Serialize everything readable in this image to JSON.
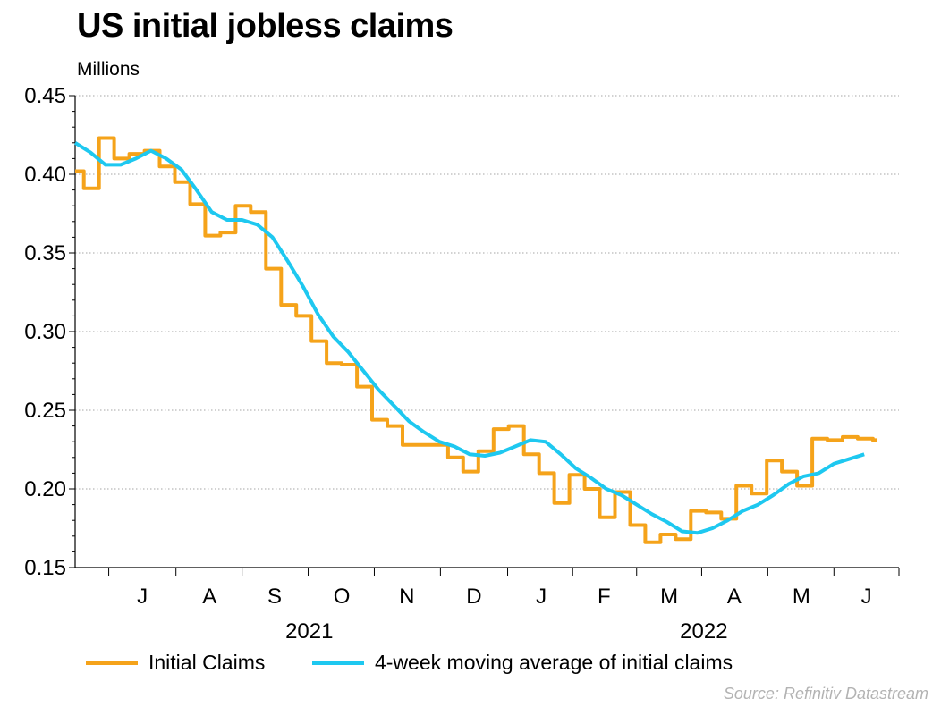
{
  "chart_data": {
    "type": "line",
    "title": "US initial jobless claims",
    "ylabel": "Millions",
    "ylim": [
      0.15,
      0.45
    ],
    "yticks": [
      "0.45",
      "0.40",
      "0.35",
      "0.30",
      "0.25",
      "0.20",
      "0.15"
    ],
    "xlim": [
      "2021-06-15",
      "2022-06-30"
    ],
    "x_month_labels": [
      {
        "label": "J",
        "date": "2021-07-16"
      },
      {
        "label": "A",
        "date": "2021-08-16"
      },
      {
        "label": "S",
        "date": "2021-09-15"
      },
      {
        "label": "O",
        "date": "2021-10-16"
      },
      {
        "label": "N",
        "date": "2021-11-15"
      },
      {
        "label": "D",
        "date": "2021-12-16"
      },
      {
        "label": "J",
        "date": "2022-01-16"
      },
      {
        "label": "F",
        "date": "2022-02-14"
      },
      {
        "label": "M",
        "date": "2022-03-16"
      },
      {
        "label": "A",
        "date": "2022-04-15"
      },
      {
        "label": "M",
        "date": "2022-05-16"
      },
      {
        "label": "J",
        "date": "2022-06-15"
      }
    ],
    "x_year_labels": [
      {
        "label": "2021",
        "date": "2021-10-01"
      },
      {
        "label": "2022",
        "date": "2022-04-01"
      }
    ],
    "grid": "horizontal-dotted",
    "legend_position": "bottom",
    "series": [
      {
        "name": "Initial Claims",
        "color": "#f5a31a",
        "step": true,
        "points": [
          [
            "2021-06-15",
            0.402
          ],
          [
            "2021-06-19",
            0.391
          ],
          [
            "2021-06-26",
            0.423
          ],
          [
            "2021-07-03",
            0.41
          ],
          [
            "2021-07-10",
            0.413
          ],
          [
            "2021-07-17",
            0.415
          ],
          [
            "2021-07-24",
            0.405
          ],
          [
            "2021-07-31",
            0.395
          ],
          [
            "2021-08-07",
            0.381
          ],
          [
            "2021-08-14",
            0.361
          ],
          [
            "2021-08-21",
            0.363
          ],
          [
            "2021-08-28",
            0.38
          ],
          [
            "2021-09-04",
            0.376
          ],
          [
            "2021-09-11",
            0.34
          ],
          [
            "2021-09-18",
            0.317
          ],
          [
            "2021-09-25",
            0.31
          ],
          [
            "2021-10-02",
            0.294
          ],
          [
            "2021-10-09",
            0.28
          ],
          [
            "2021-10-16",
            0.279
          ],
          [
            "2021-10-23",
            0.265
          ],
          [
            "2021-10-30",
            0.244
          ],
          [
            "2021-11-06",
            0.24
          ],
          [
            "2021-11-13",
            0.228
          ],
          [
            "2021-11-20",
            0.228
          ],
          [
            "2021-11-27",
            0.228
          ],
          [
            "2021-12-04",
            0.22
          ],
          [
            "2021-12-11",
            0.211
          ],
          [
            "2021-12-18",
            0.224
          ],
          [
            "2021-12-25",
            0.238
          ],
          [
            "2022-01-01",
            0.24
          ],
          [
            "2022-01-08",
            0.222
          ],
          [
            "2022-01-15",
            0.21
          ],
          [
            "2022-01-22",
            0.191
          ],
          [
            "2022-01-29",
            0.209
          ],
          [
            "2022-02-05",
            0.2
          ],
          [
            "2022-02-12",
            0.182
          ],
          [
            "2022-02-19",
            0.198
          ],
          [
            "2022-02-26",
            0.177
          ],
          [
            "2022-03-05",
            0.166
          ],
          [
            "2022-03-12",
            0.171
          ],
          [
            "2022-03-19",
            0.168
          ],
          [
            "2022-03-26",
            0.186
          ],
          [
            "2022-04-02",
            0.185
          ],
          [
            "2022-04-09",
            0.181
          ],
          [
            "2022-04-16",
            0.202
          ],
          [
            "2022-04-23",
            0.197
          ],
          [
            "2022-04-30",
            0.218
          ],
          [
            "2022-05-07",
            0.211
          ],
          [
            "2022-05-14",
            0.202
          ],
          [
            "2022-05-21",
            0.232
          ],
          [
            "2022-05-28",
            0.231
          ],
          [
            "2022-06-04",
            0.233
          ],
          [
            "2022-06-11",
            0.232
          ],
          [
            "2022-06-18",
            0.231
          ]
        ]
      },
      {
        "name": "4-week moving average of initial claims",
        "color": "#1ec8f0",
        "step": false,
        "points": [
          [
            "2021-06-15",
            0.42
          ],
          [
            "2021-06-22",
            0.414
          ],
          [
            "2021-06-29",
            0.406
          ],
          [
            "2021-07-06",
            0.406
          ],
          [
            "2021-07-13",
            0.41
          ],
          [
            "2021-07-20",
            0.415
          ],
          [
            "2021-07-27",
            0.41
          ],
          [
            "2021-08-03",
            0.403
          ],
          [
            "2021-08-10",
            0.39
          ],
          [
            "2021-08-17",
            0.376
          ],
          [
            "2021-08-24",
            0.371
          ],
          [
            "2021-08-31",
            0.371
          ],
          [
            "2021-09-07",
            0.368
          ],
          [
            "2021-09-14",
            0.36
          ],
          [
            "2021-09-21",
            0.345
          ],
          [
            "2021-09-28",
            0.329
          ],
          [
            "2021-10-05",
            0.311
          ],
          [
            "2021-10-12",
            0.297
          ],
          [
            "2021-10-19",
            0.287
          ],
          [
            "2021-10-26",
            0.275
          ],
          [
            "2021-11-02",
            0.263
          ],
          [
            "2021-11-09",
            0.253
          ],
          [
            "2021-11-16",
            0.243
          ],
          [
            "2021-11-23",
            0.236
          ],
          [
            "2021-11-30",
            0.23
          ],
          [
            "2021-12-07",
            0.227
          ],
          [
            "2021-12-14",
            0.222
          ],
          [
            "2021-12-21",
            0.221
          ],
          [
            "2021-12-28",
            0.223
          ],
          [
            "2022-01-04",
            0.227
          ],
          [
            "2022-01-11",
            0.231
          ],
          [
            "2022-01-18",
            0.23
          ],
          [
            "2022-01-25",
            0.222
          ],
          [
            "2022-02-01",
            0.213
          ],
          [
            "2022-02-08",
            0.207
          ],
          [
            "2022-02-15",
            0.2
          ],
          [
            "2022-02-22",
            0.196
          ],
          [
            "2022-03-01",
            0.19
          ],
          [
            "2022-03-08",
            0.184
          ],
          [
            "2022-03-15",
            0.179
          ],
          [
            "2022-03-22",
            0.173
          ],
          [
            "2022-03-29",
            0.172
          ],
          [
            "2022-04-05",
            0.175
          ],
          [
            "2022-04-12",
            0.18
          ],
          [
            "2022-04-19",
            0.186
          ],
          [
            "2022-04-26",
            0.19
          ],
          [
            "2022-05-03",
            0.196
          ],
          [
            "2022-05-10",
            0.203
          ],
          [
            "2022-05-17",
            0.208
          ],
          [
            "2022-05-24",
            0.21
          ],
          [
            "2022-05-31",
            0.216
          ],
          [
            "2022-06-07",
            0.219
          ],
          [
            "2022-06-14",
            0.222
          ]
        ]
      }
    ],
    "source": "Source: Refinitiv Datastream"
  }
}
